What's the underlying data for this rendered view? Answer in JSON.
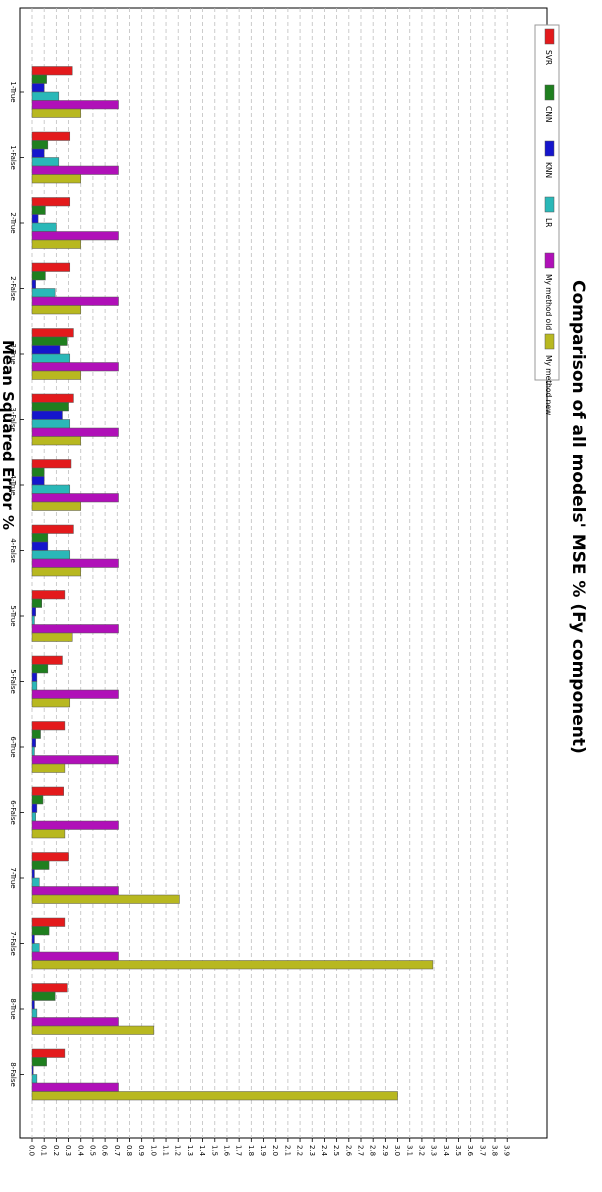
{
  "chart_data": {
    "type": "bar",
    "orientation": "horizontal",
    "title": "Comparison of all models' MSE % (Fy component)",
    "xlabel": "Mean Squared Error %",
    "ylabel": "",
    "xlim": [
      0,
      3.9
    ],
    "x_ticks": [
      "0.0",
      "0.1",
      "0.2",
      "0.3",
      "0.4",
      "0.5",
      "0.6",
      "0.7",
      "0.8",
      "0.9",
      "1.0",
      "1.1",
      "1.2",
      "1.3",
      "1.4",
      "1.5",
      "1.6",
      "1.7",
      "1.8",
      "1.9",
      "2.0",
      "2.1",
      "2.2",
      "2.3",
      "2.4",
      "2.5",
      "2.6",
      "2.7",
      "2.8",
      "2.9",
      "3.0",
      "3.1",
      "3.2",
      "3.3",
      "3.4",
      "3.5",
      "3.6",
      "3.7",
      "3.8",
      "3.9"
    ],
    "grid": true,
    "legend_position": "top",
    "categories": [
      "1-True",
      "1-False",
      "2-True",
      "2-False",
      "3-True",
      "3-False",
      "4-True",
      "4-False",
      "5-True",
      "5-False",
      "6-True",
      "6-False",
      "7-True",
      "7-False",
      "8-True",
      "8-False"
    ],
    "series": [
      {
        "name": "SVR",
        "color": "#e31a1c",
        "values": [
          0.33,
          0.31,
          0.31,
          0.31,
          0.34,
          0.34,
          0.32,
          0.34,
          0.27,
          0.25,
          0.27,
          0.26,
          0.3,
          0.27,
          0.29,
          0.27
        ]
      },
      {
        "name": "CNN",
        "color": "#1f7f1f",
        "values": [
          0.12,
          0.13,
          0.11,
          0.11,
          0.29,
          0.3,
          0.1,
          0.13,
          0.08,
          0.13,
          0.07,
          0.09,
          0.14,
          0.14,
          0.19,
          0.12
        ]
      },
      {
        "name": "KNN",
        "color": "#1515cc",
        "values": [
          0.1,
          0.1,
          0.05,
          0.03,
          0.23,
          0.25,
          0.1,
          0.13,
          0.03,
          0.04,
          0.03,
          0.04,
          0.02,
          0.02,
          0.02,
          0.01
        ]
      },
      {
        "name": "LR",
        "color": "#2ab8b8",
        "values": [
          0.22,
          0.22,
          0.2,
          0.19,
          0.31,
          0.31,
          0.31,
          0.31,
          0.02,
          0.04,
          0.02,
          0.03,
          0.06,
          0.06,
          0.04,
          0.04
        ]
      },
      {
        "name": "My method old",
        "color": "#b010b8",
        "values": [
          0.71,
          0.71,
          0.71,
          0.71,
          0.71,
          0.71,
          0.71,
          0.71,
          0.71,
          0.71,
          0.71,
          0.71,
          0.71,
          0.71,
          0.71,
          0.71
        ]
      },
      {
        "name": "My method new",
        "color": "#b8b820",
        "values": [
          0.4,
          0.4,
          0.4,
          0.4,
          0.4,
          0.4,
          0.4,
          0.4,
          0.33,
          0.31,
          0.27,
          0.27,
          1.21,
          3.29,
          1.0,
          3.0
        ]
      }
    ]
  }
}
